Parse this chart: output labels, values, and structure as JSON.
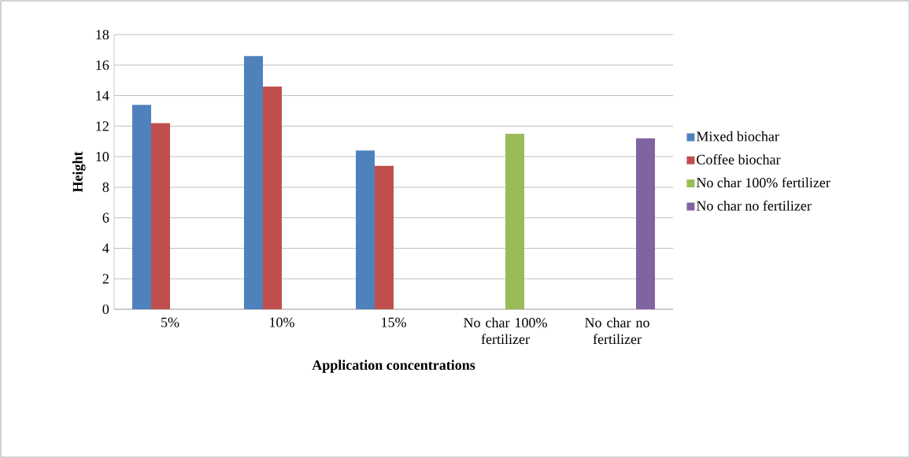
{
  "chart_data": {
    "type": "bar",
    "xlabel": "Application concentrations",
    "ylabel": "Height",
    "categories": [
      "5%",
      "10%",
      "15%",
      "No char 100% fertilizer",
      "No char no fertilizer"
    ],
    "series": [
      {
        "name": "Mixed biochar",
        "color": "#4f81bd",
        "values": [
          13.4,
          16.6,
          10.4,
          null,
          null
        ]
      },
      {
        "name": "Coffee biochar",
        "color": "#c0504d",
        "values": [
          12.2,
          14.6,
          9.4,
          null,
          null
        ]
      },
      {
        "name": "No char 100% fertilizer",
        "color": "#9bbb59",
        "values": [
          null,
          null,
          null,
          11.5,
          null
        ]
      },
      {
        "name": "No char no fertilizer",
        "color": "#8064a2",
        "values": [
          null,
          null,
          null,
          null,
          11.2
        ]
      }
    ],
    "ylim": [
      0,
      18
    ],
    "yticks": [
      0,
      2,
      4,
      6,
      8,
      10,
      12,
      14,
      16,
      18
    ],
    "grid": "y",
    "legend": "right"
  }
}
